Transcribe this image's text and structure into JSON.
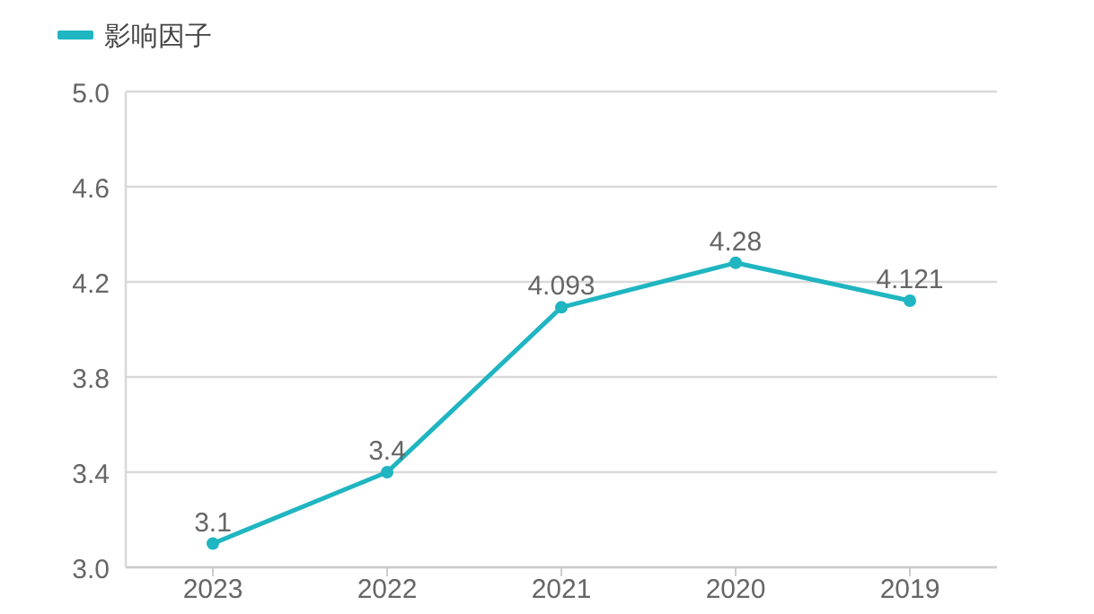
{
  "chart_data": {
    "type": "line",
    "categories": [
      "2023",
      "2022",
      "2021",
      "2020",
      "2019"
    ],
    "series": [
      {
        "name": "影响因子",
        "color": "#1fb5c1",
        "values": [
          3.1,
          3.4,
          4.093,
          4.28,
          4.121
        ]
      }
    ],
    "ylim": [
      3.0,
      5.0
    ],
    "yticks": [
      {
        "value": 3.0,
        "label": "3.0"
      },
      {
        "value": 3.4,
        "label": "3.4"
      },
      {
        "value": 3.8,
        "label": "3.8"
      },
      {
        "value": 4.2,
        "label": "4.2"
      },
      {
        "value": 4.6,
        "label": "4.6"
      },
      {
        "value": 5.0,
        "label": "5.0"
      }
    ],
    "grid": "y",
    "legend": "top left",
    "marker": "circle",
    "data_labels": true
  }
}
